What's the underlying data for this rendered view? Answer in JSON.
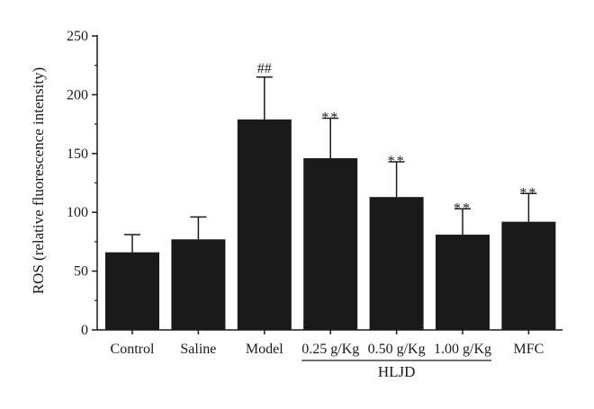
{
  "chart_data": {
    "type": "bar",
    "categories": [
      "Control",
      "Saline",
      "Model",
      "0.25 g/Kg",
      "0.50 g/Kg",
      "1.00 g/Kg",
      "MFC"
    ],
    "values": [
      66,
      77,
      179,
      146,
      113,
      81,
      92
    ],
    "error_plus": [
      15,
      19,
      36,
      34,
      30,
      22,
      24
    ],
    "significance": [
      "",
      "",
      "##",
      "**",
      "**",
      "**",
      "**"
    ],
    "ylabel": "ROS (relative fluorescence intensity)",
    "xlabel": "",
    "ylim": [
      0,
      250
    ],
    "yticks": [
      0,
      50,
      100,
      150,
      200,
      250
    ],
    "group": {
      "label": "HLJD",
      "from_index": 3,
      "to_index": 5
    },
    "bar_color": "#1a1a1a",
    "grid": false,
    "legend": "none"
  }
}
